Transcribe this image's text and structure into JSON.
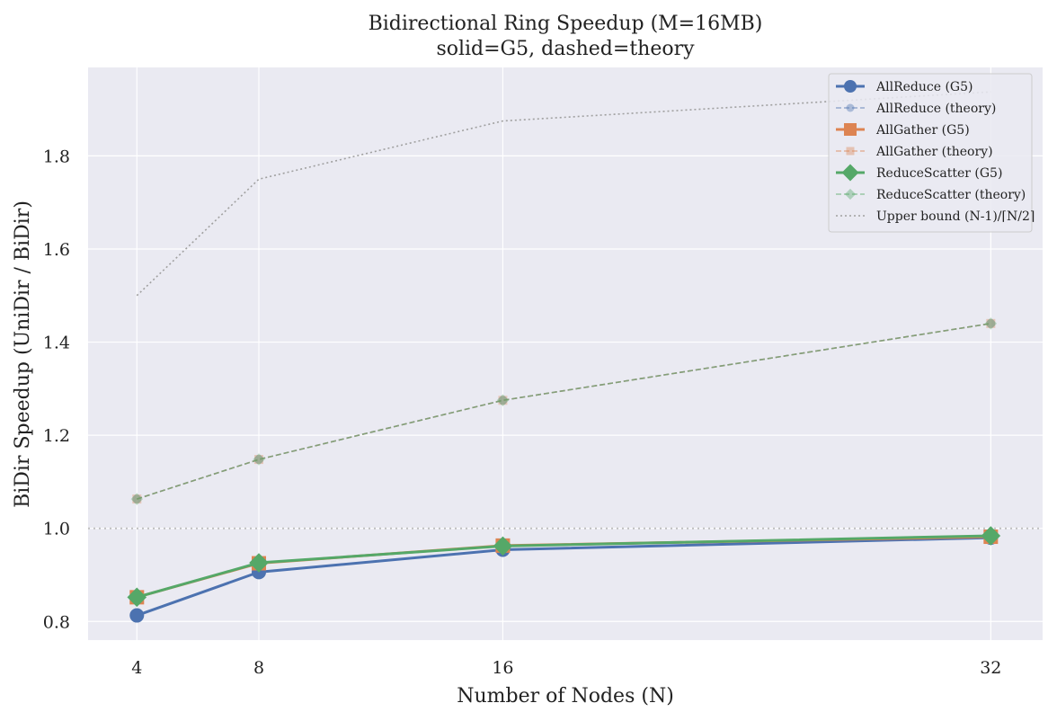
{
  "chart_data": {
    "type": "line",
    "title": "Bidirectional Ring Speedup (M=16MB)",
    "subtitle": "solid=G5, dashed=theory",
    "xlabel": "Number of Nodes (N)",
    "ylabel": "BiDir Speedup (UniDir / BiDir)",
    "x": [
      4,
      8,
      16,
      32
    ],
    "x_ticks": [
      "4",
      "8",
      "16",
      "32"
    ],
    "y_ticks": [
      "0.8",
      "1.0",
      "1.2",
      "1.4",
      "1.6",
      "1.8"
    ],
    "xlim": [
      2.4,
      33.7
    ],
    "ylim": [
      0.76,
      1.99
    ],
    "grid": true,
    "legend_position": "top-right",
    "reference_line": 1.0,
    "series": [
      {
        "name": "AllReduce (G5)",
        "values": [
          0.813,
          0.906,
          0.954,
          0.98
        ],
        "color": "#4c72b0",
        "style": "solid",
        "marker": "circle"
      },
      {
        "name": "AllReduce (theory)",
        "values": [
          1.063,
          1.148,
          1.275,
          1.44
        ],
        "color": "#4c72b0",
        "style": "dashed",
        "marker": "circle"
      },
      {
        "name": "AllGather (G5)",
        "values": [
          0.852,
          0.925,
          0.963,
          0.982
        ],
        "color": "#dd8452",
        "style": "solid",
        "marker": "square"
      },
      {
        "name": "AllGather (theory)",
        "values": [
          1.063,
          1.148,
          1.275,
          1.44
        ],
        "color": "#dd8452",
        "style": "dashed",
        "marker": "square"
      },
      {
        "name": "ReduceScatter (G5)",
        "values": [
          0.852,
          0.926,
          0.962,
          0.984
        ],
        "color": "#55a868",
        "style": "solid",
        "marker": "diamond"
      },
      {
        "name": "ReduceScatter (theory)",
        "values": [
          1.063,
          1.148,
          1.275,
          1.44
        ],
        "color": "#55a868",
        "style": "dashed",
        "marker": "diamond"
      },
      {
        "name": "Upper bound (N-1)/⌈N/2⌉",
        "values": [
          1.5,
          1.75,
          1.875,
          1.9375
        ],
        "color": "#a0a0a0",
        "style": "dotted",
        "marker": "none"
      }
    ]
  }
}
